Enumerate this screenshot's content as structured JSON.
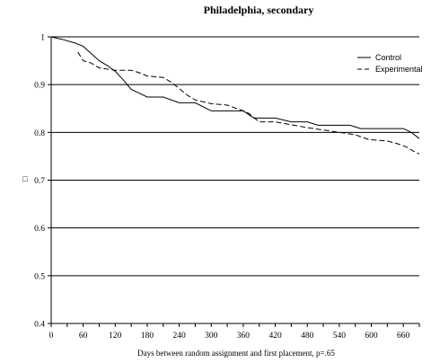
{
  "chart_data": {
    "type": "line",
    "title": "Philadelphia, secondary",
    "xlabel": "Days between random assignment and first placement, p=.65",
    "ylabel": "□",
    "xlim": [
      0,
      690
    ],
    "ylim": [
      0.4,
      1.0
    ],
    "x_ticks": [
      0,
      60,
      120,
      180,
      240,
      300,
      360,
      420,
      480,
      540,
      600,
      660
    ],
    "y_ticks": [
      0.4,
      0.5,
      0.6,
      0.7,
      0.8,
      0.9,
      1.0
    ],
    "y_tick_labels": [
      "0.4",
      "0.5",
      "0.6",
      "0.7",
      "0.8",
      "0.9",
      "1"
    ],
    "grid": "horizontal",
    "legend_position": "top-right",
    "series": [
      {
        "name": "Control",
        "style": "solid",
        "points": [
          [
            0,
            1.0
          ],
          [
            20,
            0.995
          ],
          [
            45,
            0.987
          ],
          [
            60,
            0.98
          ],
          [
            75,
            0.965
          ],
          [
            90,
            0.95
          ],
          [
            105,
            0.94
          ],
          [
            120,
            0.928
          ],
          [
            135,
            0.91
          ],
          [
            150,
            0.89
          ],
          [
            165,
            0.882
          ],
          [
            180,
            0.874
          ],
          [
            210,
            0.874
          ],
          [
            240,
            0.862
          ],
          [
            270,
            0.862
          ],
          [
            300,
            0.845
          ],
          [
            330,
            0.845
          ],
          [
            360,
            0.845
          ],
          [
            380,
            0.83
          ],
          [
            420,
            0.83
          ],
          [
            450,
            0.822
          ],
          [
            480,
            0.822
          ],
          [
            500,
            0.815
          ],
          [
            560,
            0.815
          ],
          [
            580,
            0.808
          ],
          [
            640,
            0.808
          ],
          [
            660,
            0.808
          ],
          [
            675,
            0.8
          ],
          [
            690,
            0.787
          ]
        ]
      },
      {
        "name": "Experimental",
        "style": "dashed",
        "points": [
          [
            50,
            0.968
          ],
          [
            60,
            0.95
          ],
          [
            75,
            0.945
          ],
          [
            90,
            0.935
          ],
          [
            120,
            0.93
          ],
          [
            150,
            0.93
          ],
          [
            165,
            0.925
          ],
          [
            180,
            0.918
          ],
          [
            210,
            0.915
          ],
          [
            225,
            0.905
          ],
          [
            240,
            0.892
          ],
          [
            255,
            0.878
          ],
          [
            270,
            0.868
          ],
          [
            300,
            0.86
          ],
          [
            330,
            0.857
          ],
          [
            360,
            0.845
          ],
          [
            370,
            0.84
          ],
          [
            390,
            0.822
          ],
          [
            420,
            0.822
          ],
          [
            440,
            0.818
          ],
          [
            480,
            0.81
          ],
          [
            510,
            0.805
          ],
          [
            540,
            0.8
          ],
          [
            570,
            0.795
          ],
          [
            595,
            0.785
          ],
          [
            630,
            0.782
          ],
          [
            650,
            0.776
          ],
          [
            665,
            0.77
          ],
          [
            680,
            0.76
          ],
          [
            690,
            0.755
          ]
        ]
      }
    ]
  }
}
